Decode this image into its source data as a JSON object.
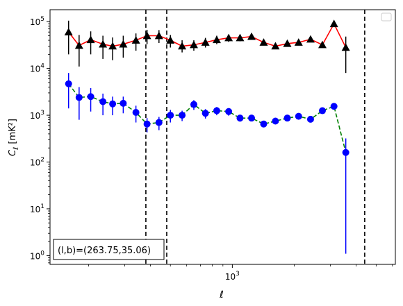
{
  "chart_data": {
    "type": "scatter",
    "xscale": "log",
    "yscale": "log",
    "xlim": [
      130,
      6200
    ],
    "ylim": [
      0.65,
      180000
    ],
    "xticks": [
      {
        "value": 1000,
        "label": "10^3"
      }
    ],
    "yticks": [
      {
        "value": 1,
        "label": "10^0"
      },
      {
        "value": 10,
        "label": "10^1"
      },
      {
        "value": 100,
        "label": "10^2"
      },
      {
        "value": 1000,
        "label": "10^3"
      },
      {
        "value": 10000,
        "label": "10^4"
      },
      {
        "value": 100000,
        "label": "10^5"
      }
    ],
    "xlabel": "ℓ",
    "ylabel": "C_ℓ [mK²]",
    "grid": false,
    "legend": "top-right (empty)",
    "annotation": "(l,b)=(263.75,35.06)",
    "vlines": [
      380,
      480,
      4400
    ],
    "series": [
      {
        "marker": "triangle",
        "color": "#000000",
        "line_color": "#ff0000",
        "line_style": "solid",
        "points": [
          {
            "x": 160,
            "y": 60000,
            "lo": 20000,
            "hi": 105000
          },
          {
            "x": 180,
            "y": 31000,
            "lo": 11000,
            "hi": 52000
          },
          {
            "x": 205,
            "y": 41000,
            "lo": 20000,
            "hi": 62000
          },
          {
            "x": 235,
            "y": 33000,
            "lo": 16000,
            "hi": 50000
          },
          {
            "x": 262,
            "y": 30000,
            "lo": 15000,
            "hi": 46000
          },
          {
            "x": 295,
            "y": 33000,
            "lo": 17000,
            "hi": 50000
          },
          {
            "x": 340,
            "y": 40000,
            "lo": 24000,
            "hi": 56000
          },
          {
            "x": 385,
            "y": 50000,
            "lo": 33000,
            "hi": 67000
          },
          {
            "x": 440,
            "y": 50000,
            "lo": 35000,
            "hi": 66000
          },
          {
            "x": 500,
            "y": 40000,
            "lo": 28000,
            "hi": 52000
          },
          {
            "x": 570,
            "y": 30000,
            "lo": 22000,
            "hi": 40000
          },
          {
            "x": 650,
            "y": 32000,
            "lo": 24000,
            "hi": 40000
          },
          {
            "x": 740,
            "y": 36000,
            "lo": 28000,
            "hi": 45000
          },
          {
            "x": 840,
            "y": 41000,
            "lo": 33000,
            "hi": 50000
          },
          {
            "x": 960,
            "y": 45000,
            "lo": 37000,
            "hi": 53000
          },
          {
            "x": 1090,
            "y": 45000,
            "lo": 38000,
            "hi": 53000
          },
          {
            "x": 1240,
            "y": 48000,
            "lo": 41000,
            "hi": 55000
          },
          {
            "x": 1420,
            "y": 36000,
            "lo": 31000,
            "hi": 41000
          },
          {
            "x": 1620,
            "y": 30000,
            "lo": 26000,
            "hi": 34000
          },
          {
            "x": 1850,
            "y": 34000,
            "lo": 30000,
            "hi": 38000
          },
          {
            "x": 2100,
            "y": 36000,
            "lo": 32000,
            "hi": 40000
          },
          {
            "x": 2400,
            "y": 42000,
            "lo": 38000,
            "hi": 46000
          },
          {
            "x": 2740,
            "y": 32000,
            "lo": 29000,
            "hi": 35000
          },
          {
            "x": 3120,
            "y": 90000,
            "lo": 82000,
            "hi": 98000
          },
          {
            "x": 3560,
            "y": 28000,
            "lo": 8000,
            "hi": 48000
          }
        ]
      },
      {
        "marker": "circle",
        "color": "#0000ff",
        "line_color": "#008000",
        "line_style": "dashed",
        "points": [
          {
            "x": 160,
            "y": 4700,
            "lo": 1400,
            "hi": 8000
          },
          {
            "x": 180,
            "y": 2400,
            "lo": 800,
            "hi": 4000
          },
          {
            "x": 205,
            "y": 2500,
            "lo": 1200,
            "hi": 3800
          },
          {
            "x": 235,
            "y": 1950,
            "lo": 1000,
            "hi": 2900
          },
          {
            "x": 262,
            "y": 1750,
            "lo": 1000,
            "hi": 2500
          },
          {
            "x": 295,
            "y": 1800,
            "lo": 1100,
            "hi": 2500
          },
          {
            "x": 340,
            "y": 1150,
            "lo": 700,
            "hi": 1600
          },
          {
            "x": 385,
            "y": 650,
            "lo": 430,
            "hi": 870
          },
          {
            "x": 440,
            "y": 700,
            "lo": 480,
            "hi": 920
          },
          {
            "x": 500,
            "y": 1000,
            "lo": 700,
            "hi": 1300
          },
          {
            "x": 570,
            "y": 1000,
            "lo": 750,
            "hi": 1250
          },
          {
            "x": 650,
            "y": 1700,
            "lo": 1300,
            "hi": 2100
          },
          {
            "x": 740,
            "y": 1100,
            "lo": 850,
            "hi": 1350
          },
          {
            "x": 840,
            "y": 1250,
            "lo": 1000,
            "hi": 1500
          },
          {
            "x": 960,
            "y": 1200,
            "lo": 980,
            "hi": 1420
          },
          {
            "x": 1090,
            "y": 870,
            "lo": 730,
            "hi": 1010
          },
          {
            "x": 1240,
            "y": 870,
            "lo": 740,
            "hi": 1000
          },
          {
            "x": 1420,
            "y": 650,
            "lo": 560,
            "hi": 740
          },
          {
            "x": 1620,
            "y": 750,
            "lo": 650,
            "hi": 850
          },
          {
            "x": 1850,
            "y": 870,
            "lo": 770,
            "hi": 970
          },
          {
            "x": 2100,
            "y": 950,
            "lo": 860,
            "hi": 1040
          },
          {
            "x": 2400,
            "y": 820,
            "lo": 740,
            "hi": 900
          },
          {
            "x": 2740,
            "y": 1250,
            "lo": 1150,
            "hi": 1350
          },
          {
            "x": 3120,
            "y": 1550,
            "lo": 1450,
            "hi": 1650
          },
          {
            "x": 3560,
            "y": 160,
            "lo": 1.1,
            "hi": 320
          }
        ]
      }
    ]
  }
}
